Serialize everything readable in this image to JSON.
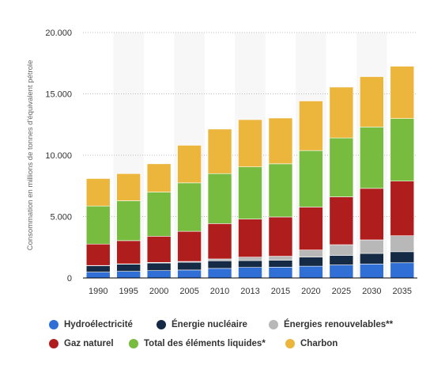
{
  "chart_data": {
    "type": "bar",
    "stacked": true,
    "categories": [
      "1990",
      "1995",
      "2000",
      "2005",
      "2010",
      "2013",
      "2015",
      "2020",
      "2025",
      "2030",
      "2035"
    ],
    "ylabel": "Consommation en millions de tonnes d'équivalent pétrole",
    "ylim": [
      0,
      20000
    ],
    "yticks": [
      0,
      5000,
      10000,
      15000,
      20000
    ],
    "ytick_labels": [
      "0",
      "5.000",
      "10.000",
      "15.000",
      "20.000"
    ],
    "grid": "horizontal dotted",
    "legend_position": "bottom",
    "series": [
      {
        "name": "Hydroélectricité",
        "color": "#2f6fd6",
        "values": [
          480,
          540,
          600,
          650,
          780,
          860,
          880,
          960,
          1060,
          1140,
          1240
        ]
      },
      {
        "name": "Énergie nucléaire",
        "color": "#142a45",
        "values": [
          520,
          580,
          620,
          630,
          620,
          560,
          570,
          740,
          780,
          860,
          900
        ]
      },
      {
        "name": "Énergies renouvelables**",
        "color": "#b8b8b8",
        "values": [
          20,
          30,
          50,
          70,
          150,
          280,
          320,
          580,
          870,
          1100,
          1300
        ]
      },
      {
        "name": "Gaz naturel",
        "color": "#b01d1d",
        "values": [
          1740,
          1890,
          2130,
          2450,
          2880,
          3100,
          3200,
          3500,
          3900,
          4200,
          4450
        ]
      },
      {
        "name": "Total des éléments liquides*",
        "color": "#77bb3f",
        "values": [
          3100,
          3250,
          3600,
          3950,
          4070,
          4250,
          4330,
          4600,
          4800,
          5000,
          5100
        ]
      },
      {
        "name": "Charbon",
        "color": "#ecb63d",
        "values": [
          2240,
          2210,
          2300,
          3060,
          3630,
          3850,
          3730,
          4040,
          4140,
          4100,
          4260
        ]
      }
    ]
  },
  "legend": {
    "rows": [
      [
        0,
        1,
        2
      ],
      [
        3,
        4,
        5
      ]
    ]
  }
}
